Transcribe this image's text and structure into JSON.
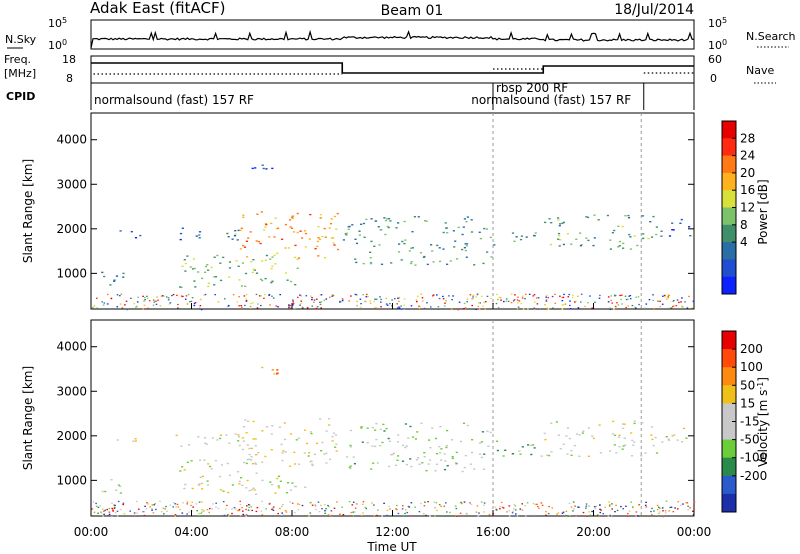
{
  "header": {
    "radar": "Adak East (fitACF)",
    "beam": "Beam 01",
    "date": "18/Jul/2014"
  },
  "panels": {
    "nsky": {
      "label": "N.Sky",
      "tick_top": "10^5",
      "tick_bottom": "10^0"
    },
    "nsearch": {
      "label": "N.Search",
      "tick_top": "10^5",
      "tick_bottom": "10^0"
    },
    "freq": {
      "label_line1": "Freq.",
      "label_line2": "[MHz]",
      "tick_top": "18",
      "tick_bottom": "8"
    },
    "nave": {
      "label": "Nave",
      "tick_top": "60",
      "tick_bottom": "0"
    },
    "cpid": {
      "label": "CPID",
      "modes": [
        {
          "text": "normalsound (fast) 157 RF",
          "start_h": 0.0
        },
        {
          "text": "rbsp 200 RF",
          "start_h": 16.0
        },
        {
          "text": "normalsound (fast) 157 RF",
          "start_h": 18.0
        }
      ]
    }
  },
  "colorbars": {
    "power": {
      "label": "Power [dB]",
      "ticks": [
        "28",
        "24",
        "20",
        "16",
        "12",
        "8",
        "4"
      ],
      "colors": [
        "#0b22ff",
        "#1f4fd0",
        "#2a6ea6",
        "#3f8f6a",
        "#7bc26a",
        "#d8e03a",
        "#ffb21e",
        "#ff7a14",
        "#ff2a10",
        "#e60000"
      ]
    },
    "velocity": {
      "label": "Velocity [m s^-1]",
      "ticks": [
        "200",
        "100",
        "50",
        "15",
        "-15",
        "-50",
        "-100",
        "-200"
      ],
      "colors": [
        "#1a2fa8",
        "#2a5acb",
        "#2a8a4a",
        "#6ccd3a",
        "#c8c8c8",
        "#c8c8c8",
        "#f0c01a",
        "#ff8a10",
        "#ff4a0a",
        "#e60000"
      ]
    }
  },
  "chart_data": [
    {
      "type": "heatmap",
      "name": "power",
      "ylabel": "Slant Range [km]",
      "xlim": [
        0,
        24
      ],
      "ylim": [
        200,
        4600
      ],
      "yticks": [
        "1000",
        "2000",
        "3000",
        "4000"
      ],
      "bands": [
        {
          "t0": 0.0,
          "t1": 1.4,
          "r0": 700,
          "r1": 1050,
          "level": 0.25
        },
        {
          "t0": 1.0,
          "t1": 2.0,
          "r0": 1800,
          "r1": 2050,
          "level": 0.15
        },
        {
          "t0": 3.3,
          "t1": 6.0,
          "r0": 1750,
          "r1": 2050,
          "level": 0.2
        },
        {
          "t0": 3.5,
          "t1": 8.5,
          "r0": 700,
          "r1": 1500,
          "level": 0.45
        },
        {
          "t0": 5.7,
          "t1": 9.9,
          "r0": 1350,
          "r1": 2400,
          "level": 0.7
        },
        {
          "t0": 6.3,
          "t1": 7.4,
          "r0": 3250,
          "r1": 3550,
          "level": 0.1
        },
        {
          "t0": 10.0,
          "t1": 15.9,
          "r0": 1200,
          "r1": 2300,
          "level": 0.35
        },
        {
          "t0": 16.0,
          "t1": 18.0,
          "r0": 1650,
          "r1": 1950,
          "level": 0.3
        },
        {
          "t0": 18.0,
          "t1": 22.5,
          "r0": 1550,
          "r1": 2350,
          "level": 0.4
        },
        {
          "t0": 22.5,
          "t1": 24.0,
          "r0": 1850,
          "r1": 2250,
          "level": 0.2
        }
      ]
    },
    {
      "type": "heatmap",
      "name": "velocity",
      "ylabel": "Slant Range [km]",
      "xlabel": "Time UT",
      "xlim": [
        0,
        24
      ],
      "ylim": [
        200,
        4600
      ],
      "yticks": [
        "1000",
        "2000",
        "3000",
        "4000"
      ],
      "xticks": [
        "00:00",
        "04:00",
        "08:00",
        "12:00",
        "16:00",
        "20:00",
        "00:00"
      ],
      "xtick_hours": [
        0,
        4,
        8,
        12,
        16,
        20,
        24
      ],
      "bands": [
        {
          "t0": 0.0,
          "t1": 1.4,
          "r0": 700,
          "r1": 1050,
          "level": 0.45
        },
        {
          "t0": 1.0,
          "t1": 2.0,
          "r0": 1800,
          "r1": 2050,
          "level": 0.5
        },
        {
          "t0": 3.3,
          "t1": 6.0,
          "r0": 1750,
          "r1": 2050,
          "level": 0.5
        },
        {
          "t0": 3.5,
          "t1": 8.5,
          "r0": 700,
          "r1": 1500,
          "level": 0.5
        },
        {
          "t0": 5.7,
          "t1": 9.9,
          "r0": 1350,
          "r1": 2400,
          "level": 0.52
        },
        {
          "t0": 6.3,
          "t1": 7.4,
          "r0": 3250,
          "r1": 3550,
          "level": 0.75
        },
        {
          "t0": 10.0,
          "t1": 15.9,
          "r0": 1200,
          "r1": 2300,
          "level": 0.42
        },
        {
          "t0": 16.0,
          "t1": 18.0,
          "r0": 1500,
          "r1": 1950,
          "level": 0.35
        },
        {
          "t0": 18.0,
          "t1": 22.5,
          "r0": 1550,
          "r1": 2350,
          "level": 0.5
        },
        {
          "t0": 22.5,
          "t1": 24.0,
          "r0": 1850,
          "r1": 2250,
          "level": 0.5
        }
      ]
    }
  ]
}
